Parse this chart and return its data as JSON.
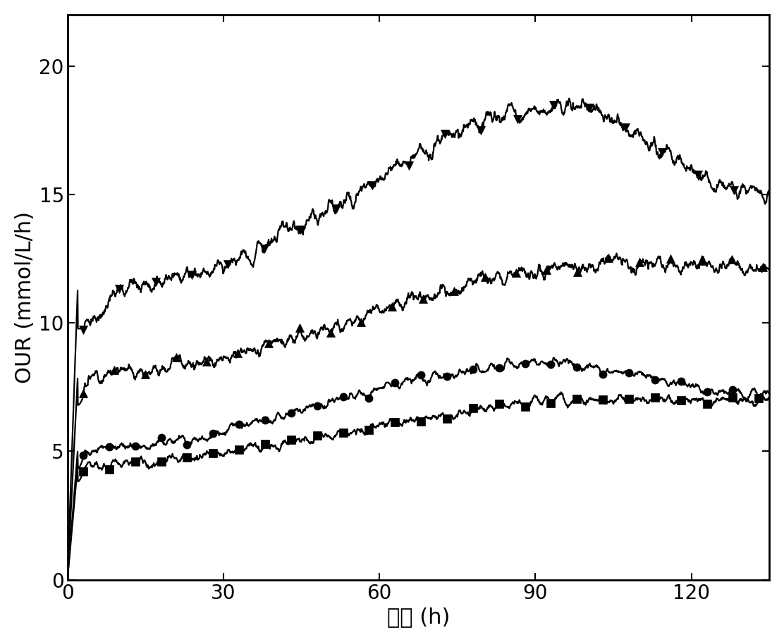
{
  "xlabel": "时间 (h)",
  "ylabel": "OUR (mmol/L/h)",
  "xlim": [
    0,
    135
  ],
  "ylim": [
    0,
    22
  ],
  "xticks": [
    0,
    30,
    60,
    90,
    120
  ],
  "yticks": [
    0,
    5,
    10,
    15,
    20
  ],
  "background_color": "#ffffff",
  "line_color": "#000000",
  "font_size_label": 22,
  "font_size_tick": 20,
  "marker_size": 8,
  "line_width": 1.6,
  "curves": [
    {
      "marker": "v",
      "marker_every": 7,
      "peak": 18.4,
      "peak_time": 95,
      "end_val": 15.0,
      "early_plateau": 11.5,
      "early_time": 13,
      "noise_amp": 0.18
    },
    {
      "marker": "^",
      "marker_every": 6,
      "peak": 12.3,
      "peak_time": 105,
      "end_val": 12.2,
      "early_plateau": 8.0,
      "early_time": 5,
      "noise_amp": 0.15
    },
    {
      "marker": "o",
      "marker_every": 5,
      "peak": 8.4,
      "peak_time": 92,
      "end_val": 7.2,
      "early_plateau": 5.1,
      "early_time": 4,
      "noise_amp": 0.1
    },
    {
      "marker": "s",
      "marker_every": 5,
      "peak": 7.0,
      "peak_time": 105,
      "end_val": 7.0,
      "early_plateau": 4.5,
      "early_time": 4,
      "noise_amp": 0.1
    }
  ]
}
